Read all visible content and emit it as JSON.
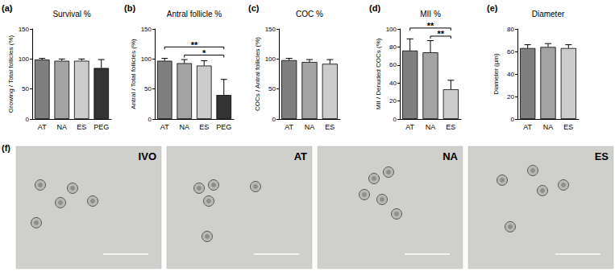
{
  "chart_data": [
    {
      "type": "bar",
      "panel": "(a)",
      "title": "Survival %",
      "y_label": "Growing / Total follicles (%)",
      "categories": [
        "AT",
        "NA",
        "ES",
        "PEG"
      ],
      "values": [
        99,
        97,
        97,
        85
      ],
      "errors": [
        2,
        3,
        3,
        14
      ],
      "colors": [
        "#7f7f7f",
        "#a3a3a3",
        "#cccccc",
        "#333333"
      ],
      "ylim": [
        0,
        150
      ],
      "yticks": [
        0,
        50,
        100,
        150
      ],
      "grid": false,
      "significance": []
    },
    {
      "type": "bar",
      "panel": "(b)",
      "title": "Antral follicle %",
      "y_label": "Antral / Total follicles (%)",
      "categories": [
        "AT",
        "NA",
        "ES",
        "PEG"
      ],
      "values": [
        97,
        93,
        89,
        40
      ],
      "errors": [
        4,
        6,
        8,
        26
      ],
      "colors": [
        "#7f7f7f",
        "#a3a3a3",
        "#cccccc",
        "#333333"
      ],
      "ylim": [
        0,
        150
      ],
      "yticks": [
        0,
        50,
        100,
        150
      ],
      "grid": false,
      "significance": [
        {
          "groups": [
            "AT",
            "PEG"
          ],
          "label": "**"
        },
        {
          "groups": [
            "NA",
            "PEG"
          ],
          "label": "*"
        }
      ]
    },
    {
      "type": "bar",
      "panel": "(c)",
      "title": "COC %",
      "y_label": "COCs / Antral follicles (%)",
      "categories": [
        "AT",
        "NA",
        "ES"
      ],
      "values": [
        98,
        95,
        92
      ],
      "errors": [
        3,
        4,
        7
      ],
      "colors": [
        "#7f7f7f",
        "#a3a3a3",
        "#cccccc"
      ],
      "ylim": [
        0,
        150
      ],
      "yticks": [
        0,
        50,
        100,
        150
      ],
      "grid": false,
      "significance": []
    },
    {
      "type": "bar",
      "panel": "(d)",
      "title": "MII %",
      "y_label": "MII / Denuded COCs (%)",
      "categories": [
        "AT",
        "NA",
        "ES"
      ],
      "values": [
        76,
        74,
        33
      ],
      "errors": [
        13,
        13,
        10
      ],
      "colors": [
        "#7f7f7f",
        "#a3a3a3",
        "#cccccc"
      ],
      "ylim": [
        0,
        100
      ],
      "yticks": [
        0,
        20,
        40,
        60,
        80,
        100
      ],
      "grid": false,
      "significance": [
        {
          "groups": [
            "AT",
            "ES"
          ],
          "label": "**"
        },
        {
          "groups": [
            "NA",
            "ES"
          ],
          "label": "**"
        }
      ]
    },
    {
      "type": "bar",
      "panel": "(e)",
      "title": "Diameter",
      "y_label": "Diameter (µm)",
      "categories": [
        "AT",
        "NA",
        "ES"
      ],
      "values": [
        63,
        64,
        63
      ],
      "errors": [
        3,
        3,
        3
      ],
      "colors": [
        "#7f7f7f",
        "#a3a3a3",
        "#cccccc"
      ],
      "ylim": [
        0,
        80
      ],
      "yticks": [
        0,
        20,
        40,
        60,
        80
      ],
      "grid": false,
      "significance": []
    }
  ],
  "images": {
    "panel": "(f)",
    "labels": [
      "IVO",
      "AT",
      "NA",
      "ES"
    ]
  }
}
